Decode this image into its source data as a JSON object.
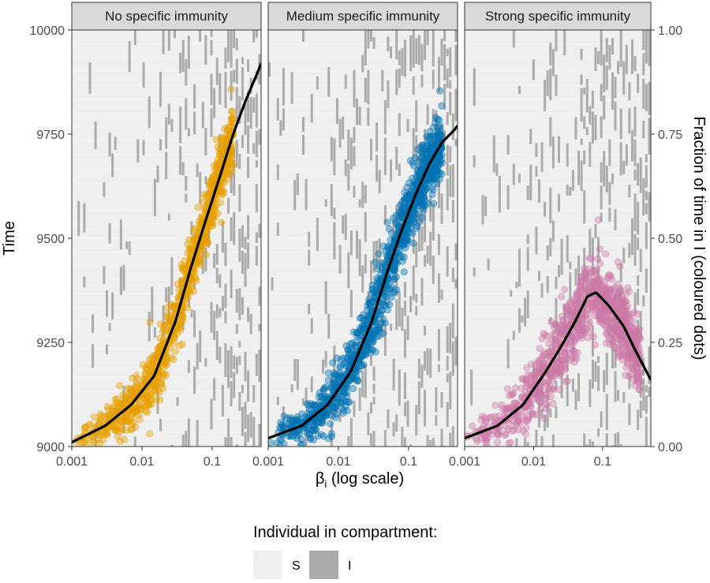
{
  "chart_data": {
    "type": "scatter",
    "y_axis_left": {
      "label": "Time",
      "range": [
        9000,
        10000
      ],
      "ticks": [
        9000,
        9250,
        9500,
        9750,
        10000
      ],
      "tick_labels": [
        "9000",
        "9250",
        "9500",
        "9750",
        "10000"
      ]
    },
    "y_axis_right": {
      "label": "Fraction of time in I (coloured dots)",
      "range": [
        0,
        1
      ],
      "ticks": [
        0,
        0.25,
        0.5,
        0.75,
        1
      ],
      "tick_labels": [
        "0.00",
        "0.25",
        "0.50",
        "0.75",
        "1.00"
      ]
    },
    "x_axis": {
      "label_main": "β",
      "label_sub": "i",
      "label_rest": " (log scale)",
      "scale": "log10",
      "range": [
        0.001,
        0.5
      ],
      "ticks": [
        0.001,
        0.01,
        0.1
      ],
      "tick_labels": [
        "0.001",
        "0.01",
        "0.1"
      ]
    },
    "panels": [
      {
        "title": "No specific immunity",
        "color": "#E69F00",
        "trend": [
          [
            0.001,
            0.01
          ],
          [
            0.003,
            0.05
          ],
          [
            0.007,
            0.1
          ],
          [
            0.015,
            0.17
          ],
          [
            0.03,
            0.3
          ],
          [
            0.05,
            0.43
          ],
          [
            0.08,
            0.54
          ],
          [
            0.13,
            0.65
          ],
          [
            0.2,
            0.75
          ],
          [
            0.3,
            0.83
          ],
          [
            0.45,
            0.9
          ],
          [
            0.5,
            0.92
          ]
        ],
        "points": {
          "count": 1000,
          "x_range": [
            0.001,
            0.2
          ],
          "spread": 0.035
        }
      },
      {
        "title": "Medium specific immunity",
        "color": "#0072B2",
        "trend": [
          [
            0.001,
            0.02
          ],
          [
            0.003,
            0.05
          ],
          [
            0.007,
            0.1
          ],
          [
            0.015,
            0.18
          ],
          [
            0.03,
            0.3
          ],
          [
            0.05,
            0.42
          ],
          [
            0.08,
            0.52
          ],
          [
            0.13,
            0.61
          ],
          [
            0.2,
            0.68
          ],
          [
            0.3,
            0.73
          ],
          [
            0.45,
            0.76
          ],
          [
            0.5,
            0.77
          ]
        ],
        "points": {
          "count": 1100,
          "x_range": [
            0.001,
            0.3
          ],
          "spread": 0.04
        }
      },
      {
        "title": "Strong specific immunity",
        "color": "#CC79A7",
        "trend": [
          [
            0.001,
            0.02
          ],
          [
            0.003,
            0.05
          ],
          [
            0.007,
            0.1
          ],
          [
            0.015,
            0.18
          ],
          [
            0.025,
            0.24
          ],
          [
            0.04,
            0.3
          ],
          [
            0.06,
            0.36
          ],
          [
            0.08,
            0.37
          ],
          [
            0.12,
            0.34
          ],
          [
            0.2,
            0.29
          ],
          [
            0.3,
            0.23
          ],
          [
            0.5,
            0.16
          ]
        ],
        "points": {
          "count": 1000,
          "x_range": [
            0.001,
            0.35
          ],
          "spread": 0.045
        }
      }
    ],
    "background_tiles": {
      "description_colors": {
        "S": "#EFEFEF",
        "I": "#ABABAB"
      }
    },
    "legend": {
      "title": "Individual in compartment:",
      "items": [
        {
          "label": "S",
          "color": "#EFEFEF"
        },
        {
          "label": "I",
          "color": "#ABABAB"
        }
      ],
      "placement": "bottom"
    }
  }
}
